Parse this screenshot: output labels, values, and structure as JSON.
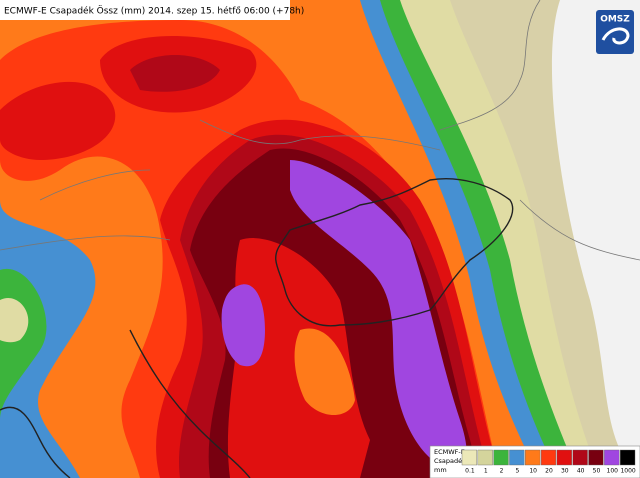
{
  "title": "ECMWF-E Csapadék Össz (mm) 2014. szep 15. hétfő 06:00 (+78h)",
  "logo": "OMSZ",
  "legend": {
    "lines": [
      "ECMWF-E",
      "Csapadék",
      "mm"
    ],
    "labels": [
      "0.1",
      "1",
      "2",
      "5",
      "10",
      "20",
      "30",
      "40",
      "50",
      "100",
      "1000"
    ],
    "colors": [
      "#ece8b8",
      "#d4d49c",
      "#3cb43c",
      "#4690d2",
      "#ff7a1a",
      "#ff3a10",
      "#e01010",
      "#b00818",
      "#780010",
      "#a046e0",
      "#000000"
    ]
  }
}
